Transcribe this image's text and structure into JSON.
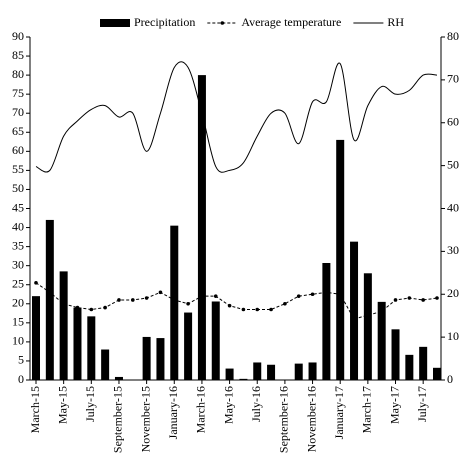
{
  "chart_data": {
    "type": "bar_line",
    "categories": [
      "March-15",
      null,
      "May-15",
      null,
      "July-15",
      null,
      "September-15",
      null,
      "November-15",
      null,
      "January-16",
      null,
      "March-16",
      null,
      "May-16",
      null,
      "July-16",
      null,
      "September-16",
      null,
      "November-16",
      null,
      "January-17",
      null,
      "March-17",
      null,
      "May-17",
      null,
      "July-17",
      null
    ],
    "series": [
      {
        "name": "Precipitation",
        "kind": "bar",
        "color": "#000000",
        "values": [
          22,
          42,
          28.5,
          19,
          16.7,
          8,
          0.8,
          0,
          11.3,
          11,
          40.5,
          17.7,
          80,
          20.6,
          3,
          0.3,
          4.6,
          4,
          0,
          4.3,
          4.6,
          30.7,
          63,
          36.3,
          28,
          20.5,
          13.3,
          6.6,
          8.7,
          3.2
        ]
      },
      {
        "name": "Average temperature",
        "kind": "dotted",
        "color": "#000000",
        "values": [
          25.5,
          23,
          20,
          19,
          18.5,
          19,
          21,
          21,
          21.5,
          23,
          21,
          20,
          22,
          22,
          19.5,
          18.5,
          18.5,
          18.5,
          20,
          22,
          22.5,
          23,
          22.5,
          16,
          17,
          18,
          21,
          21.5,
          21,
          21.5
        ]
      },
      {
        "name": "RH",
        "kind": "smooth",
        "color": "#000000",
        "values": [
          56,
          55,
          64,
          68,
          71,
          72,
          69,
          70,
          60,
          70,
          82,
          82,
          70,
          56,
          55,
          57,
          64,
          70,
          70,
          62,
          73,
          73,
          83,
          63,
          72,
          77,
          75,
          76,
          80,
          80
        ]
      }
    ],
    "ylim": [
      0,
      90
    ],
    "yticks": [
      0,
      5,
      10,
      15,
      20,
      25,
      30,
      35,
      40,
      45,
      50,
      55,
      60,
      65,
      70,
      75,
      80,
      85,
      90
    ],
    "y2lim": [
      0,
      80
    ],
    "y2ticks": [
      0,
      10,
      20,
      30,
      40,
      50,
      60,
      70,
      80
    ]
  }
}
